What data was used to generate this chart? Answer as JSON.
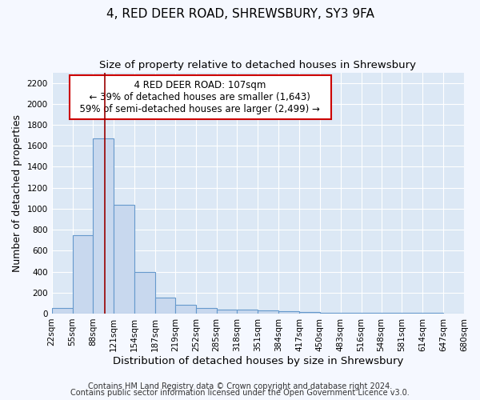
{
  "title": "4, RED DEER ROAD, SHREWSBURY, SY3 9FA",
  "subtitle": "Size of property relative to detached houses in Shrewsbury",
  "xlabel": "Distribution of detached houses by size in Shrewsbury",
  "ylabel": "Number of detached properties",
  "footnote1": "Contains HM Land Registry data © Crown copyright and database right 2024.",
  "footnote2": "Contains public sector information licensed under the Open Government Licence v3.0.",
  "annotation_line1": "4 RED DEER ROAD: 107sqm",
  "annotation_line2": "← 39% of detached houses are smaller (1,643)",
  "annotation_line3": "59% of semi-detached houses are larger (2,499) →",
  "bin_edges": [
    22,
    55,
    88,
    121,
    154,
    187,
    219,
    252,
    285,
    318,
    351,
    384,
    417,
    450,
    483,
    516,
    548,
    581,
    614,
    647,
    680
  ],
  "bar_heights": [
    50,
    750,
    1670,
    1040,
    400,
    150,
    85,
    50,
    40,
    35,
    30,
    20,
    15,
    10,
    8,
    6,
    5,
    5,
    4,
    3
  ],
  "bar_color": "#c8d8ee",
  "bar_edge_color": "#6699cc",
  "property_line_x": 107,
  "property_line_color": "#990000",
  "ylim": [
    0,
    2300
  ],
  "yticks": [
    0,
    200,
    400,
    600,
    800,
    1000,
    1200,
    1400,
    1600,
    1800,
    2000,
    2200
  ],
  "bg_color": "#dce8f5",
  "fig_bg_color": "#f5f8ff",
  "grid_color": "#ffffff",
  "title_fontsize": 11,
  "subtitle_fontsize": 9.5,
  "ylabel_fontsize": 9,
  "xlabel_fontsize": 9.5,
  "tick_fontsize": 7.5,
  "annotation_fontsize": 8.5,
  "footnote_fontsize": 7
}
